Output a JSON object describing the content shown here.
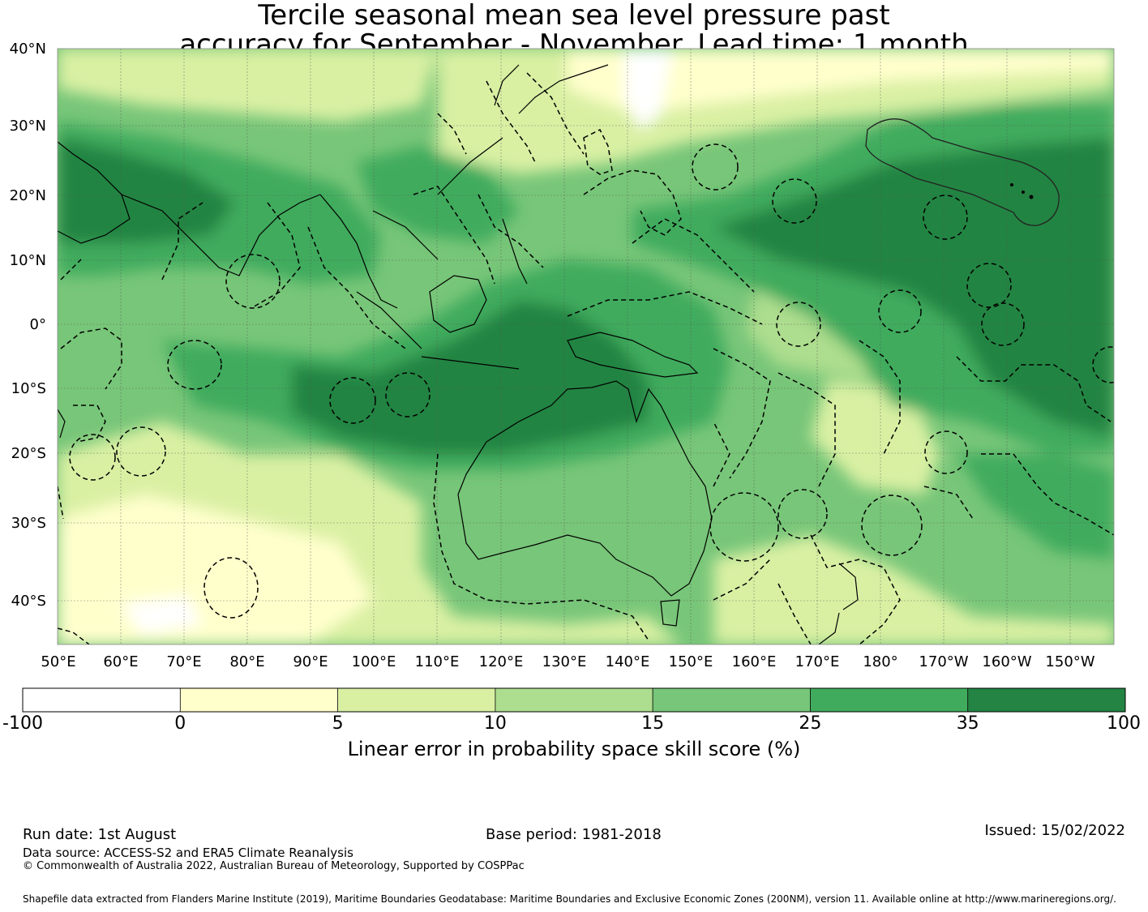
{
  "title": {
    "line1": "Tercile seasonal mean sea level pressure past",
    "line2": "accuracy for September - November. Lead time: 1 month"
  },
  "map": {
    "lon_labels": [
      "50°E",
      "60°E",
      "70°E",
      "80°E",
      "90°E",
      "100°E",
      "110°E",
      "120°E",
      "130°E",
      "140°E",
      "150°E",
      "160°E",
      "170°E",
      "180°",
      "170°W",
      "160°W",
      "150°W"
    ],
    "lat_labels": [
      "40°N",
      "30°N",
      "20°N",
      "10°N",
      "0°",
      "10°S",
      "20°S",
      "30°S",
      "40°S"
    ],
    "lon_range": [
      50,
      207
    ],
    "lat_range": [
      -46,
      40
    ]
  },
  "colorbar": {
    "label": "Linear error in probability space skill score (%)",
    "ticks": [
      "-100",
      "0",
      "5",
      "10",
      "15",
      "25",
      "35",
      "100"
    ],
    "colors": [
      "#ffffff",
      "#ffffcc",
      "#d9f0a3",
      "#addd8e",
      "#78c679",
      "#41ab5d",
      "#238443"
    ]
  },
  "footer": {
    "run_date": "Run date: 1st August",
    "base_period": "Base period: 1981-2018",
    "issued": "Issued: 15/02/2022",
    "data_source": "Data source: ACCESS-S2 and ERA5 Climate Reanalysis",
    "copyright": "© Commonwealth of Australia 2022, Australian Bureau of Meteorology, Supported by COSPPac",
    "shapefile": "Shapefile data extracted from Flanders Marine Institute (2019), Maritime Boundaries Geodatabase: Maritime Boundaries and Exclusive Economic Zones (200NM), version 11. Available online at http://www.marineregions.org/."
  }
}
